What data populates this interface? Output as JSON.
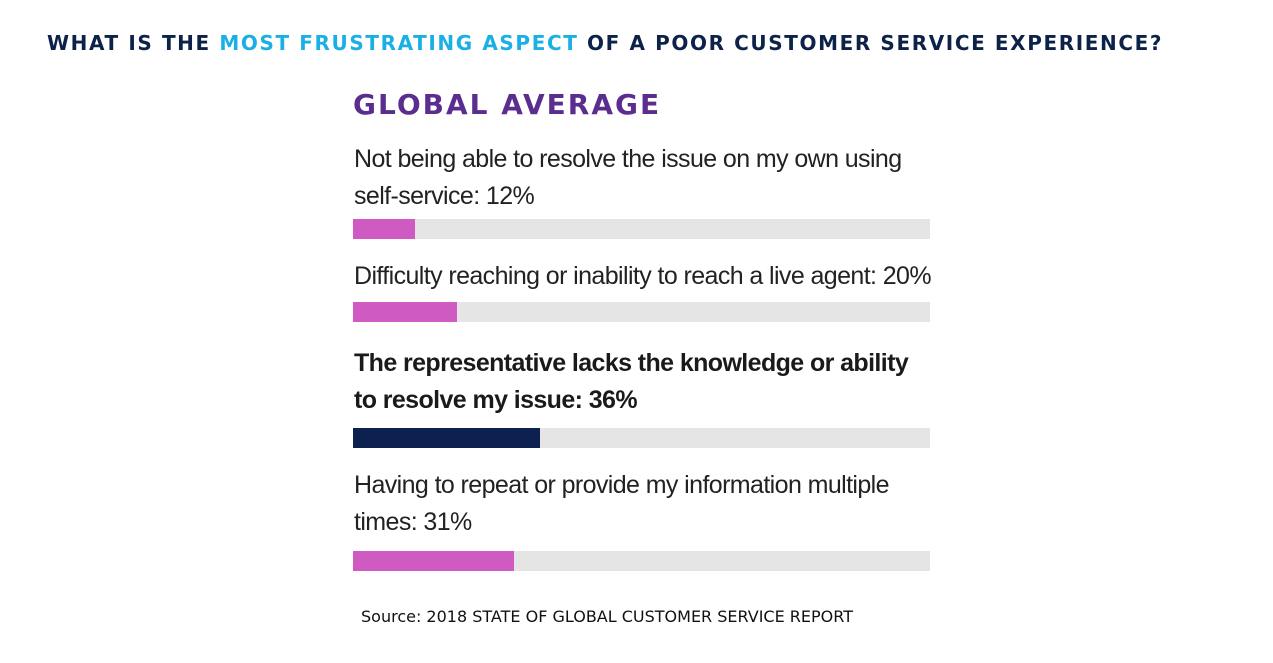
{
  "headline": {
    "prefix": "WHAT IS THE ",
    "highlight": "MOST FRUSTRATING ASPECT",
    "suffix": " OF A POOR CUSTOMER SERVICE EXPERIENCE?"
  },
  "colors": {
    "headline": "#0d2248",
    "headline_highlight": "#1ab0e6",
    "subtitle": "#5b2d8f",
    "bar_default": "#cf5ac2",
    "bar_highlight": "#0c2150",
    "track": "#e5e5e5"
  },
  "chart_data": {
    "type": "bar",
    "orientation": "horizontal",
    "title": "GLOBAL AVERAGE",
    "xlim": [
      0,
      100
    ],
    "unit": "%",
    "categories": [
      "Not being able to resolve the issue on my own using self-service: 12%",
      "Difficulty reaching or inability to reach a live agent: 20%",
      "The representative lacks the knowledge or ability to resolve my issue: 36%",
      "Having to repeat or provide my information multiple times: 31%"
    ],
    "values": [
      12,
      20,
      36,
      31
    ],
    "highlighted": [
      false,
      false,
      true,
      false
    ]
  },
  "source": "Source: 2018 STATE OF GLOBAL CUSTOMER SERVICE REPORT"
}
